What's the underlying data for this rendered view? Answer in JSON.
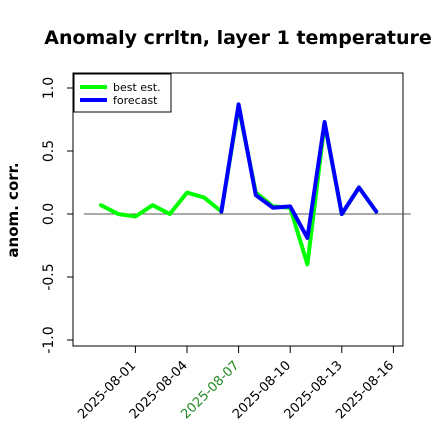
{
  "chart_data": {
    "type": "line",
    "title": "Anomaly crrltn, layer 1 temperature",
    "ylabel": "anom. corr.",
    "xlabel": "",
    "ylim": [
      -1.0,
      1.0
    ],
    "yticks": [
      "-1.0",
      "-0.5",
      "0.0",
      "0.5",
      "1.0"
    ],
    "xticks": [
      {
        "label": "2025-08-01",
        "color": "#000000"
      },
      {
        "label": "2025-08-04",
        "color": "#000000"
      },
      {
        "label": "2025-08-07",
        "color": "#228B22"
      },
      {
        "label": "2025-08-10",
        "color": "#000000"
      },
      {
        "label": "2025-08-13",
        "color": "#000000"
      },
      {
        "label": "2025-08-16",
        "color": "#000000"
      }
    ],
    "reference_line": 0.0,
    "x": [
      "2025-07-30",
      "2025-07-31",
      "2025-08-01",
      "2025-08-02",
      "2025-08-03",
      "2025-08-04",
      "2025-08-05",
      "2025-08-06",
      "2025-08-07",
      "2025-08-08",
      "2025-08-09",
      "2025-08-10",
      "2025-08-11",
      "2025-08-12",
      "2025-08-13",
      "2025-08-14",
      "2025-08-15",
      "2025-08-16"
    ],
    "series": [
      {
        "name": "best est.",
        "color": "#00ff00",
        "values": [
          0.07,
          0.0,
          -0.02,
          0.07,
          0.0,
          0.17,
          0.13,
          0.02,
          0.85,
          0.17,
          0.06,
          0.05,
          -0.4,
          0.72,
          0.0,
          0.21,
          0.02,
          null
        ]
      },
      {
        "name": "forecast",
        "color": "#0000ff",
        "values": [
          null,
          null,
          null,
          null,
          null,
          null,
          null,
          0.02,
          0.87,
          0.15,
          0.05,
          0.06,
          -0.19,
          0.73,
          0.0,
          0.21,
          0.02,
          null
        ]
      }
    ],
    "legend": {
      "position": "top-left",
      "entries": [
        "best est.",
        "forecast"
      ]
    },
    "grid": false
  }
}
